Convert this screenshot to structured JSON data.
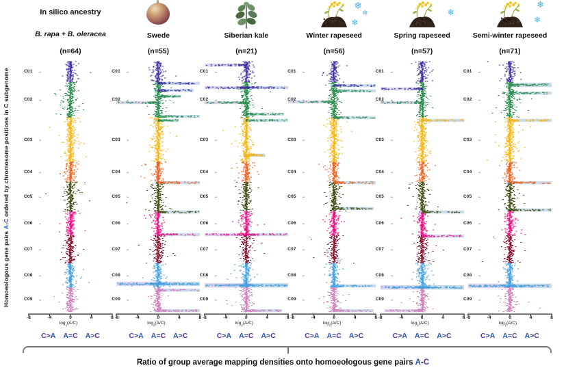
{
  "figure": {
    "y_axis_label": {
      "prefix": "Homoeologous gene pairs",
      "pair_a": "A",
      "pair_dash": "-",
      "pair_c": "C",
      "suffix": "ordered by chromosome positions in C subgenome"
    },
    "caption": {
      "prefix": "Ratio of group average mapping densities onto homoeologous gene pairs",
      "pair_a": "A",
      "pair_dash": "-",
      "pair_c": "C"
    },
    "colors": {
      "a_letter": "#2456ae",
      "c_letter": "#5c34a2",
      "operator": "#2d2d86",
      "band_right": "#c9dbe9",
      "band_left": "#d9d3eb",
      "axis": "#333333",
      "snowflake": "#49b3e8",
      "brace": "#7a7a7a"
    }
  },
  "chart_data": {
    "type": "scatter",
    "variant": "vertical manhattan plots; x = log2(A/C) group-average mapping-density ratio; y = homoeologous gene pairs ordered by chromosome position in the C subgenome; light-blue bands = regions where points shift to A>C, lavender bands = regions shifted to C>A",
    "xlim": [
      -8,
      8
    ],
    "x_tick_values": [
      -8,
      -4,
      0,
      4,
      8
    ],
    "x_ticks": [
      "-8",
      "-4",
      "0",
      "4",
      "8"
    ],
    "xlabel_parts": {
      "base": "log",
      "sub": "2",
      "rest": "(A/C)"
    },
    "legend_items": [
      "C>A",
      "A=C",
      "A>C"
    ],
    "chromosomes": [
      {
        "id": "C01",
        "color": "#4133a3",
        "weight": 30
      },
      {
        "id": "C02",
        "color": "#2e9150",
        "weight": 51
      },
      {
        "id": "C03",
        "color": "#f7b511",
        "weight": 64
      },
      {
        "id": "C04",
        "color": "#ed611e",
        "weight": 29
      },
      {
        "id": "C05",
        "color": "#49551e",
        "weight": 42
      },
      {
        "id": "C06",
        "color": "#e91387",
        "weight": 35
      },
      {
        "id": "C07",
        "color": "#8c1a36",
        "weight": 40
      },
      {
        "id": "C08",
        "color": "#45a0e0",
        "weight": 35
      },
      {
        "id": "C09",
        "color": "#d283bd",
        "weight": 35
      }
    ],
    "panels": [
      {
        "title": "In silico ancestry",
        "subtitle": "B. rapa + B. oleracea",
        "n": "(n=64)",
        "icon": null,
        "snowflakes": 0,
        "loss_bands": []
      },
      {
        "title": "Swede",
        "subtitle": "",
        "n": "(n=55)",
        "icon": "swede-root",
        "snowflakes": 0,
        "loss_bands": [
          {
            "pos": 0.087,
            "side": "right",
            "len": 1,
            "chrom": "C01"
          },
          {
            "pos": 0.115,
            "side": "right",
            "len": 0.85,
            "chrom": "C01"
          },
          {
            "pos": 0.139,
            "side": "right",
            "len": 0.55,
            "chrom": "C02"
          },
          {
            "pos": 0.164,
            "side": "left",
            "len": 1,
            "chrom": "C02"
          },
          {
            "pos": 0.219,
            "side": "right",
            "len": 1,
            "chrom": "C02"
          },
          {
            "pos": 0.235,
            "side": "right",
            "len": 0.5,
            "chrom": "C02"
          },
          {
            "pos": 0.484,
            "side": "right",
            "len": 1,
            "chrom": "C04"
          },
          {
            "pos": 0.601,
            "side": "right",
            "len": 1,
            "chrom": "C05"
          },
          {
            "pos": 0.691,
            "side": "right",
            "len": 1,
            "chrom": "C06"
          },
          {
            "pos": 0.888,
            "side": "both",
            "len": 1,
            "chrom": "C08",
            "big": true
          },
          {
            "pos": 0.913,
            "side": "right",
            "len": 1,
            "chrom": "C09"
          },
          {
            "pos": 0.995,
            "side": "right",
            "len": 1,
            "chrom": "C09"
          }
        ]
      },
      {
        "title": "Siberian kale",
        "subtitle": "",
        "n": "(n=21)",
        "icon": "kale-sprig",
        "snowflakes": 0,
        "loss_bands": [
          {
            "pos": 0.014,
            "side": "left",
            "len": 1,
            "chrom": "C01"
          },
          {
            "pos": 0.104,
            "side": "both",
            "len": 1,
            "chrom": "C01"
          },
          {
            "pos": 0.164,
            "side": "left",
            "len": 1,
            "chrom": "C02"
          },
          {
            "pos": 0.21,
            "side": "right",
            "len": 0.9,
            "chrom": "C02"
          },
          {
            "pos": 0.235,
            "side": "right",
            "len": 1,
            "chrom": "C02"
          },
          {
            "pos": 0.374,
            "side": "right",
            "len": 0.45,
            "chrom": "C03"
          },
          {
            "pos": 0.691,
            "side": "both",
            "len": 1,
            "chrom": "C06"
          },
          {
            "pos": 0.894,
            "side": "both",
            "len": 1,
            "chrom": "C08",
            "big": true
          },
          {
            "pos": 0.995,
            "side": "right",
            "len": 0.85,
            "chrom": "C09"
          }
        ]
      },
      {
        "title": "Winter rapeseed",
        "subtitle": "",
        "n": "(n=56)",
        "icon": "rapeseed-plant",
        "snowflakes": 3,
        "loss_bands": [
          {
            "pos": 0.096,
            "side": "right",
            "len": 1,
            "chrom": "C01"
          },
          {
            "pos": 0.117,
            "side": "right",
            "len": 1,
            "chrom": "C02"
          },
          {
            "pos": 0.161,
            "side": "left",
            "len": 1.1,
            "chrom": "C02"
          },
          {
            "pos": 0.224,
            "side": "right",
            "len": 1,
            "chrom": "C02"
          },
          {
            "pos": 0.484,
            "side": "right",
            "len": 1,
            "chrom": "C04"
          },
          {
            "pos": 0.587,
            "side": "right",
            "len": 0.95,
            "chrom": "C05"
          },
          {
            "pos": 0.896,
            "side": "right",
            "len": 1,
            "chrom": "C08"
          },
          {
            "pos": 0.995,
            "side": "right",
            "len": 0.95,
            "chrom": "C09"
          }
        ]
      },
      {
        "title": "Spring rapeseed",
        "subtitle": "",
        "n": "(n=57)",
        "icon": "rapeseed-plant",
        "snowflakes": 1,
        "loss_bands": [
          {
            "pos": 0.109,
            "side": "left",
            "len": 1,
            "chrom": "C01"
          },
          {
            "pos": 0.164,
            "side": "left",
            "len": 1,
            "chrom": "C02"
          },
          {
            "pos": 0.235,
            "side": "right",
            "len": 1,
            "chrom": "C03"
          },
          {
            "pos": 0.601,
            "side": "right",
            "len": 1,
            "chrom": "C05"
          },
          {
            "pos": 0.697,
            "side": "right",
            "len": 1,
            "chrom": "C06"
          },
          {
            "pos": 0.902,
            "side": "both",
            "len": 1,
            "chrom": "C08",
            "big": true
          },
          {
            "pos": 0.995,
            "side": "left",
            "len": 0.9,
            "chrom": "C09"
          }
        ]
      },
      {
        "title": "Semi-winter rapeseed",
        "subtitle": "",
        "n": "(n=71)",
        "icon": "rapeseed-plant",
        "snowflakes": 2,
        "loss_bands": [
          {
            "pos": 0.093,
            "side": "right",
            "len": 1,
            "chrom": "C02",
            "big": true
          },
          {
            "pos": 0.126,
            "side": "right",
            "len": 1,
            "chrom": "C02"
          },
          {
            "pos": 0.235,
            "side": "right",
            "len": 1,
            "chrom": "C03"
          },
          {
            "pos": 0.484,
            "side": "right",
            "len": 1,
            "chrom": "C04"
          },
          {
            "pos": 0.593,
            "side": "right",
            "len": 1,
            "chrom": "C05"
          },
          {
            "pos": 0.896,
            "side": "both",
            "len": 1,
            "chrom": "C08",
            "big": true
          }
        ]
      }
    ]
  }
}
